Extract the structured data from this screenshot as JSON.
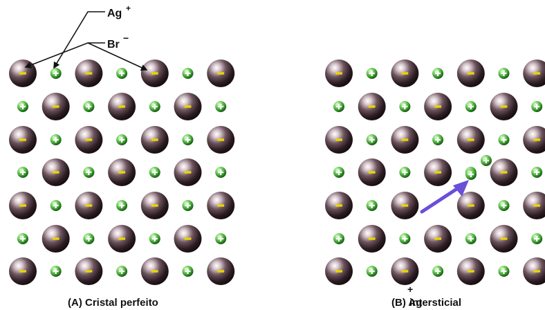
{
  "ion_labels": {
    "cation": "Ag",
    "cation_charge": "+",
    "anion": "Br",
    "anion_charge": "−"
  },
  "panels": [
    {
      "id": "A",
      "caption": "(A) Cristal perfeito"
    },
    {
      "id": "B",
      "caption": "(B) Ag",
      "caption_superscript": "+",
      "caption_suffix": " intersticial"
    }
  ],
  "colors": {
    "anion_sphere": "#3a2a30",
    "cation_sphere": "#49b03a",
    "anion_mark": "#e8d400",
    "cation_mark": "#ffffff",
    "arrow": "#6a4fd8"
  }
}
